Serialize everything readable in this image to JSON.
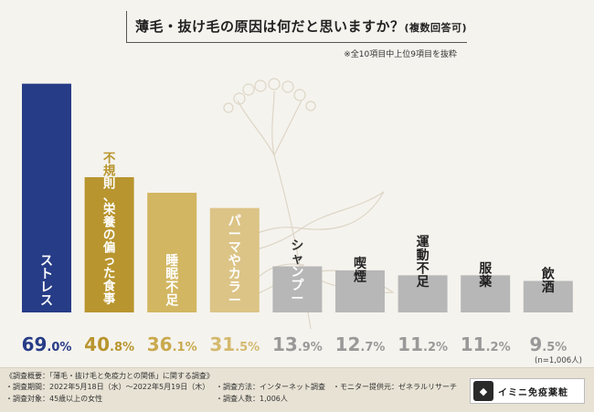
{
  "title": {
    "main": "薄毛・抜け毛の原因は何だと思いますか？",
    "sub": "(複数回答可)",
    "note": "※全10項目中上位9項目を抜粋"
  },
  "colors": {
    "stress": "#273c87",
    "gold_dark": "#b8952e",
    "gold_mid": "#d2b661",
    "gold_light": "#dcc487",
    "gray": "#b7b7b7",
    "background": "#f5f3ee"
  },
  "chart_data": {
    "type": "bar",
    "categories": [
      "ストレス",
      "不規則、栄養の偏った食事",
      "睡眠不足",
      "パーマやカラー",
      "シャンプー",
      "喫煙",
      "運動不足",
      "服薬",
      "飲酒"
    ],
    "values": [
      69.0,
      40.8,
      36.1,
      31.5,
      13.9,
      12.7,
      11.2,
      11.2,
      9.5
    ],
    "value_labels": [
      "69.0%",
      "40.8%",
      "36.1%",
      "31.5%",
      "13.9%",
      "12.7%",
      "11.2%",
      "11.2%",
      "9.5%"
    ],
    "bar_colors": [
      "#273c87",
      "#b8952e",
      "#d2b661",
      "#dcc487",
      "#b7b7b7",
      "#b7b7b7",
      "#b7b7b7",
      "#b7b7b7",
      "#b7b7b7"
    ],
    "label_colors": [
      "#ffffff",
      "#ffffff",
      "#ffffff",
      "#ffffff",
      "#ffffff",
      "#222222",
      "#222222",
      "#222222",
      "#222222"
    ],
    "value_colors": [
      "#273c87",
      "#b8952e",
      "#c9a94e",
      "#d4b96e",
      "#999999",
      "#999999",
      "#999999",
      "#999999",
      "#999999"
    ],
    "ylim": [
      0,
      70
    ],
    "n_label": "(n=1,006人)"
  },
  "footer": {
    "heading": "《調査概要：「薄毛・抜け毛と免疫力との関係」に関する調査》",
    "period": "・調査期間：2022年5月18日（水）〜2022年5月19日（木）",
    "method": "・調査方法：インターネット調査",
    "provider": "・モニター提供元：ゼネラルリサーチ",
    "target": "・調査対象：45歳以上の女性",
    "count": "・調査人数：1,006人"
  },
  "brand": {
    "name": "イミニ免疫薬粧"
  }
}
